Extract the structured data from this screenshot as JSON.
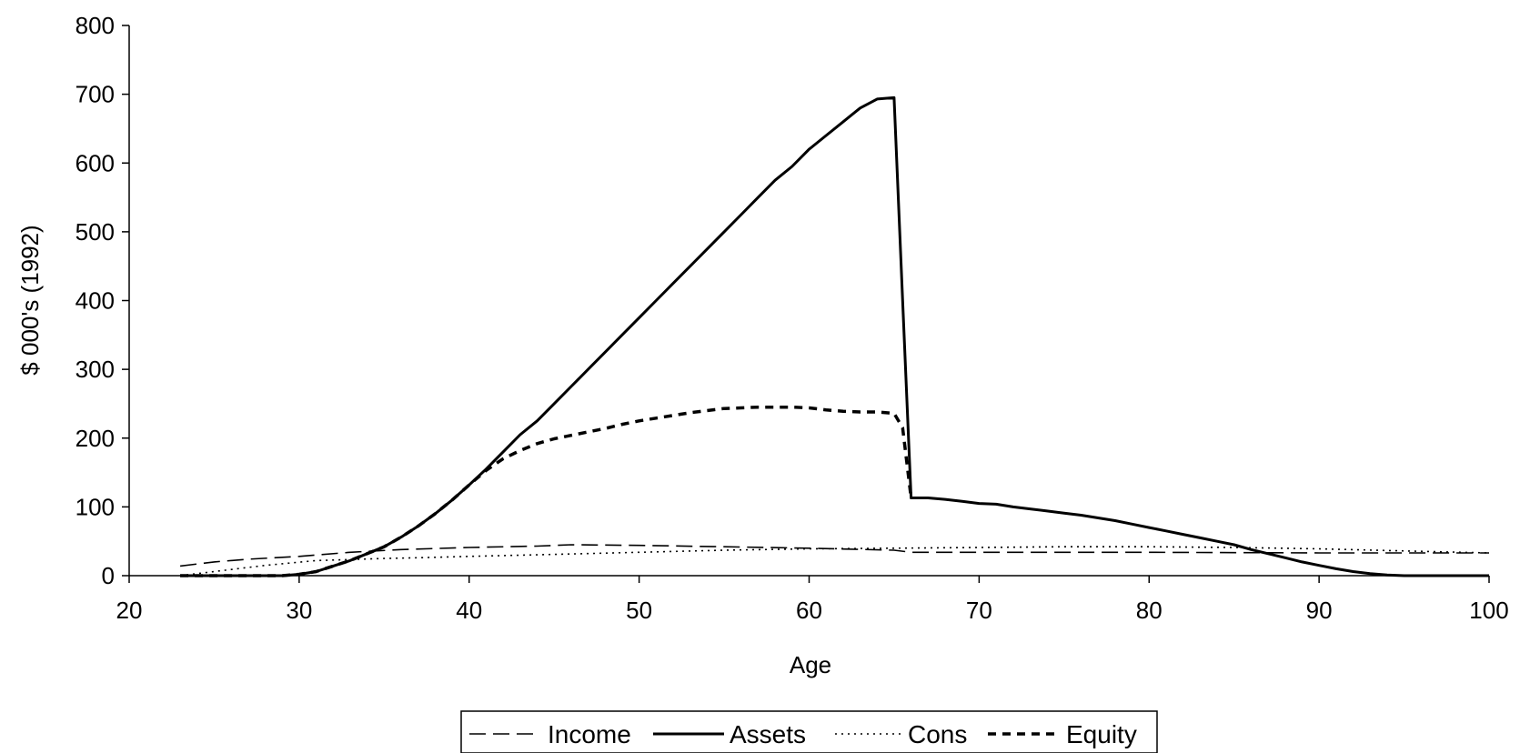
{
  "chart_data": {
    "type": "line",
    "title": "",
    "xlabel": "Age",
    "ylabel": "$ 000's (1992)",
    "xlim": [
      20,
      100
    ],
    "ylim": [
      0,
      800
    ],
    "xticks": [
      20,
      30,
      40,
      50,
      60,
      70,
      80,
      90,
      100
    ],
    "yticks": [
      0,
      100,
      200,
      300,
      400,
      500,
      600,
      700,
      800
    ],
    "grid": false,
    "legend": "bottom-center",
    "series": [
      {
        "name": "Income",
        "style": "long-dash",
        "color": "#000000",
        "x": [
          23,
          25,
          27,
          30,
          33,
          36,
          40,
          44,
          46,
          50,
          55,
          60,
          65,
          66,
          70,
          80,
          90,
          100
        ],
        "y": [
          14,
          20,
          24,
          28,
          34,
          38,
          41,
          43,
          45,
          44,
          42,
          40,
          37,
          34,
          34,
          34,
          33,
          33
        ]
      },
      {
        "name": "Assets",
        "style": "solid",
        "color": "#000000",
        "x": [
          23,
          29,
          30,
          31,
          32,
          33,
          34,
          35,
          36,
          37,
          38,
          39,
          40,
          41,
          42,
          43,
          44,
          45,
          46,
          47,
          48,
          49,
          50,
          51,
          52,
          53,
          54,
          55,
          56,
          57,
          58,
          59,
          60,
          61,
          62,
          63,
          64,
          65,
          65.5,
          66,
          67,
          68,
          69,
          70,
          71,
          72,
          73,
          74,
          75,
          76,
          77,
          78,
          79,
          80,
          81,
          82,
          83,
          84,
          85,
          86,
          87,
          88,
          89,
          90,
          91,
          92,
          93,
          94,
          95,
          96,
          97,
          98,
          99,
          100
        ],
        "y": [
          0,
          0,
          2,
          6,
          14,
          22,
          32,
          42,
          56,
          72,
          90,
          110,
          132,
          155,
          180,
          205,
          225,
          250,
          275,
          300,
          325,
          350,
          375,
          400,
          425,
          450,
          475,
          500,
          525,
          550,
          575,
          595,
          620,
          640,
          660,
          680,
          693,
          695,
          400,
          113,
          113,
          111,
          108,
          105,
          104,
          100,
          97,
          94,
          91,
          88,
          84,
          80,
          75,
          70,
          65,
          60,
          55,
          50,
          45,
          38,
          32,
          26,
          20,
          15,
          10,
          6,
          3,
          1,
          0,
          0,
          0,
          0,
          0,
          0
        ]
      },
      {
        "name": "Cons",
        "style": "dotted",
        "color": "#000000",
        "x": [
          23,
          28,
          31,
          35,
          37,
          40,
          45,
          50,
          55,
          60,
          65,
          70,
          75,
          80,
          85,
          90,
          95,
          100
        ],
        "y": [
          0,
          15,
          22,
          25,
          26,
          28,
          31,
          34,
          37,
          39,
          40,
          41,
          42,
          42,
          41,
          39,
          36,
          33
        ]
      },
      {
        "name": "Equity",
        "style": "short-dash",
        "color": "#000000",
        "x": [
          23,
          29,
          30,
          31,
          32,
          33,
          34,
          35,
          36,
          37,
          38,
          39,
          40,
          41,
          42,
          43,
          44,
          45,
          46,
          47,
          48,
          49,
          50,
          51,
          52,
          53,
          54,
          55,
          56,
          57,
          58,
          59,
          60,
          61,
          62,
          63,
          64,
          65,
          65.5,
          66
        ],
        "y": [
          0,
          0,
          2,
          6,
          14,
          22,
          32,
          42,
          56,
          72,
          90,
          110,
          132,
          153,
          170,
          182,
          192,
          199,
          204,
          209,
          214,
          220,
          225,
          229,
          233,
          237,
          240,
          243,
          244,
          245,
          245,
          245,
          244,
          241,
          239,
          238,
          238,
          236,
          215,
          113
        ]
      }
    ]
  }
}
